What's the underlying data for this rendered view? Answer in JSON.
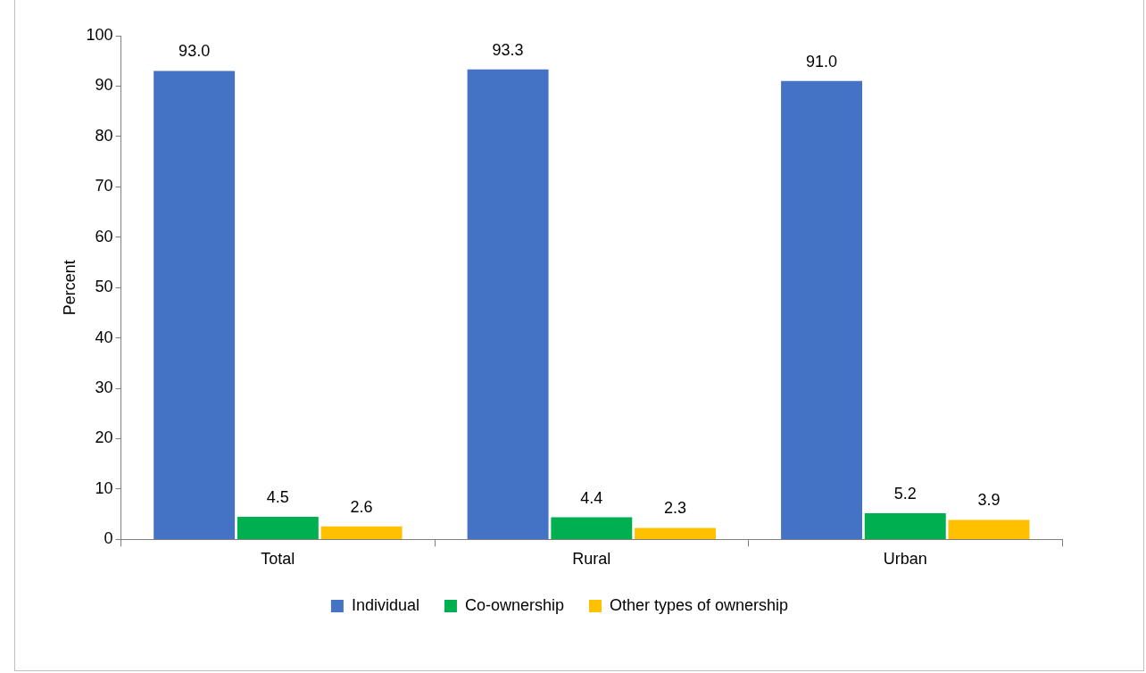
{
  "chart_data": {
    "type": "bar",
    "ylabel": "Percent",
    "categories": [
      "Total",
      "Rural",
      "Urban"
    ],
    "series": [
      {
        "name": "Individual",
        "color": "#4472c4",
        "values": [
          93,
          93.3,
          91
        ],
        "value_labels": [
          "93.0",
          "93.3",
          "91.0"
        ]
      },
      {
        "name": "Co-ownership",
        "color": "#00b050",
        "values": [
          4.5,
          4.4,
          5.2
        ],
        "value_labels": [
          "4.5",
          "4.4",
          "5.2"
        ]
      },
      {
        "name": "Other types of ownership",
        "color": "#ffc000",
        "values": [
          2.6,
          2.3,
          3.9
        ],
        "value_labels": [
          "2.6",
          "2.3",
          "3.9"
        ]
      }
    ],
    "ylim": [
      0,
      100
    ],
    "yticks": [
      0,
      10,
      20,
      30,
      40,
      50,
      60,
      70,
      80,
      90,
      100
    ],
    "grid": false,
    "legend": "bottom"
  }
}
